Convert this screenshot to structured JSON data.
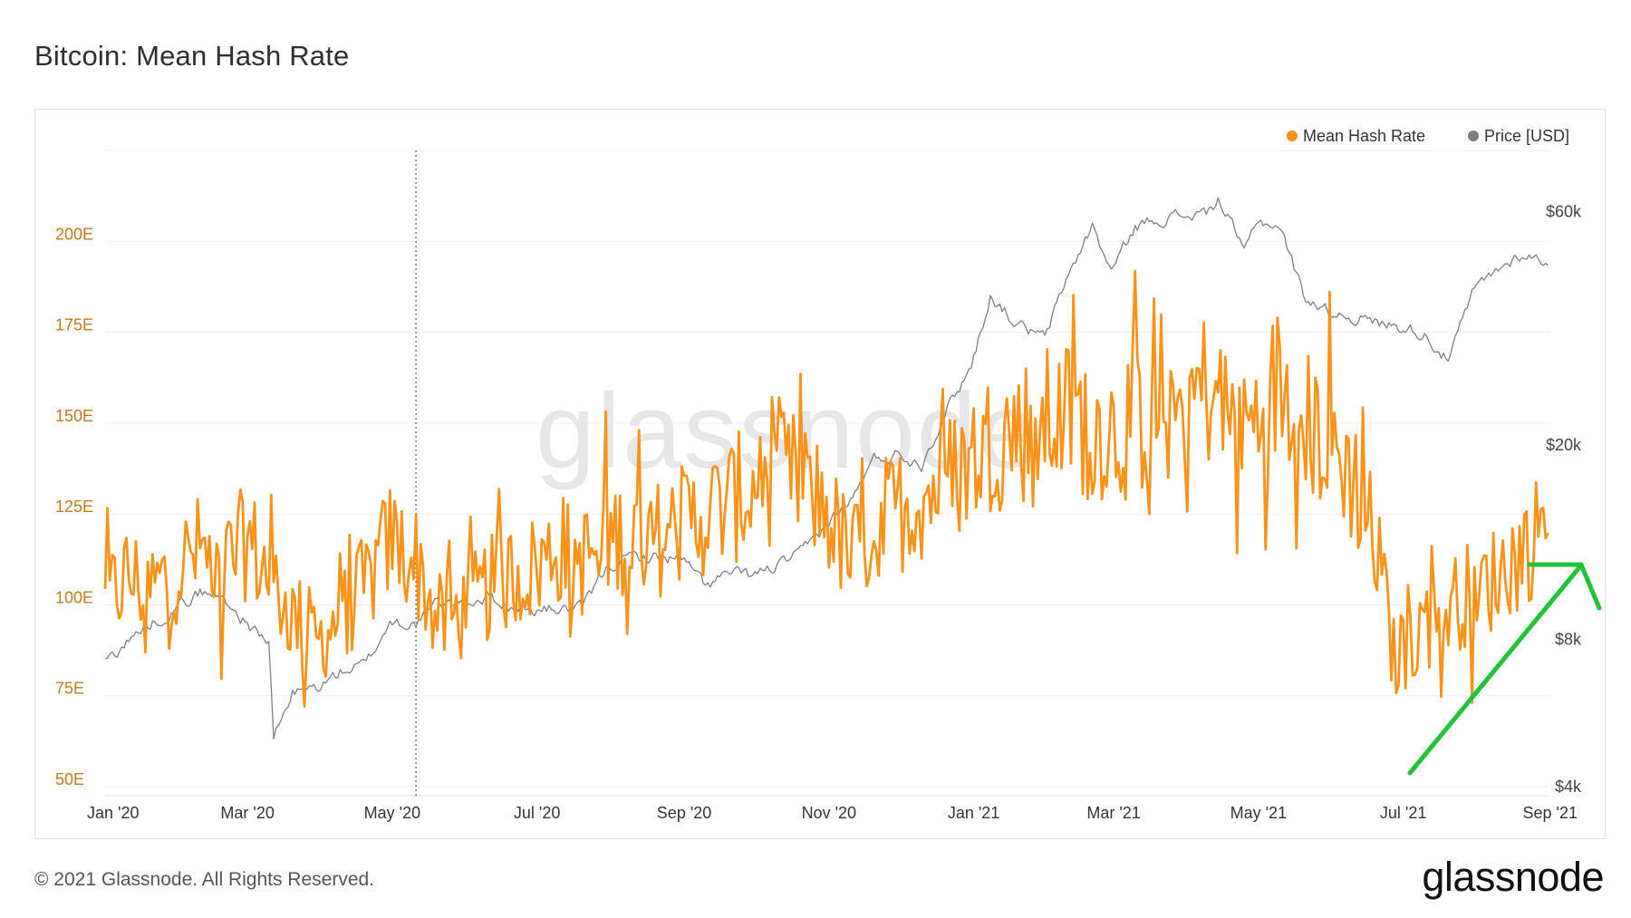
{
  "title": "Bitcoin: Mean Hash Rate",
  "footer": "© 2021 Glassnode. All Rights Reserved.",
  "logo": "glassnode",
  "watermark": "glassnode",
  "colors": {
    "hash": "#f7931a",
    "price": "#7f7f7f",
    "arrow": "#22c33a",
    "grid": "#efefef"
  },
  "chart_data": {
    "type": "line",
    "title": "Bitcoin: Mean Hash Rate",
    "legend": [
      "Mean Hash Rate",
      "Price [USD]"
    ],
    "legend_position": "top-right",
    "grid": true,
    "y_left": {
      "ticks": [
        "50E",
        "75E",
        "100E",
        "125E",
        "150E",
        "175E",
        "200E"
      ],
      "values": [
        50,
        75,
        100,
        125,
        150,
        175,
        200
      ],
      "range": [
        50,
        225
      ]
    },
    "y_right": {
      "scale": "log",
      "ticks": [
        "$4k",
        "$8k",
        "$20k",
        "$60k"
      ],
      "values": [
        4000,
        8000,
        20000,
        60000
      ],
      "range": [
        4000,
        80000
      ]
    },
    "x_ticks": [
      "Jan '20",
      "Mar '20",
      "May '20",
      "Jul '20",
      "Sep '20",
      "Nov '20",
      "Jan '21",
      "Mar '21",
      "May '21",
      "Jul '21",
      "Sep '21"
    ],
    "x_tick_dates": [
      "2020-01-01",
      "2020-03-01",
      "2020-05-01",
      "2020-07-01",
      "2020-09-01",
      "2020-11-01",
      "2021-01-01",
      "2021-03-01",
      "2021-05-01",
      "2021-07-01",
      "2021-09-01"
    ],
    "x_range": [
      "2020-01-01",
      "2021-09-01"
    ],
    "marker_date": "2020-05-11",
    "series": [
      {
        "name": "Mean Hash Rate",
        "axis": "left",
        "points": [
          [
            "2020-01-01",
            100
          ],
          [
            "2020-01-10",
            108
          ],
          [
            "2020-01-20",
            104
          ],
          [
            "2020-01-31",
            110
          ],
          [
            "2020-02-10",
            115
          ],
          [
            "2020-02-20",
            110
          ],
          [
            "2020-03-01",
            118
          ],
          [
            "2020-03-10",
            108
          ],
          [
            "2020-03-20",
            97
          ],
          [
            "2020-03-31",
            90
          ],
          [
            "2020-04-10",
            98
          ],
          [
            "2020-04-20",
            105
          ],
          [
            "2020-04-30",
            118
          ],
          [
            "2020-05-11",
            112
          ],
          [
            "2020-05-20",
            95
          ],
          [
            "2020-05-31",
            98
          ],
          [
            "2020-06-10",
            104
          ],
          [
            "2020-06-20",
            108
          ],
          [
            "2020-06-30",
            110
          ],
          [
            "2020-07-10",
            116
          ],
          [
            "2020-07-20",
            112
          ],
          [
            "2020-07-31",
            118
          ],
          [
            "2020-08-10",
            120
          ],
          [
            "2020-08-20",
            118
          ],
          [
            "2020-08-31",
            122
          ],
          [
            "2020-09-10",
            125
          ],
          [
            "2020-09-20",
            128
          ],
          [
            "2020-09-30",
            132
          ],
          [
            "2020-10-10",
            136
          ],
          [
            "2020-10-20",
            134
          ],
          [
            "2020-10-31",
            126
          ],
          [
            "2020-11-10",
            112
          ],
          [
            "2020-11-20",
            122
          ],
          [
            "2020-11-30",
            126
          ],
          [
            "2020-12-10",
            130
          ],
          [
            "2020-12-20",
            134
          ],
          [
            "2020-12-31",
            140
          ],
          [
            "2021-01-10",
            146
          ],
          [
            "2021-01-20",
            148
          ],
          [
            "2021-01-31",
            150
          ],
          [
            "2021-02-10",
            152
          ],
          [
            "2021-02-20",
            150
          ],
          [
            "2021-02-28",
            148
          ],
          [
            "2021-03-10",
            150
          ],
          [
            "2021-03-20",
            154
          ],
          [
            "2021-03-31",
            156
          ],
          [
            "2021-04-10",
            160
          ],
          [
            "2021-04-20",
            150
          ],
          [
            "2021-04-30",
            150
          ],
          [
            "2021-05-10",
            162
          ],
          [
            "2021-05-20",
            150
          ],
          [
            "2021-05-31",
            145
          ],
          [
            "2021-06-10",
            135
          ],
          [
            "2021-06-20",
            115
          ],
          [
            "2021-06-27",
            85
          ],
          [
            "2021-07-01",
            88
          ],
          [
            "2021-07-10",
            95
          ],
          [
            "2021-07-20",
            100
          ],
          [
            "2021-07-31",
            104
          ],
          [
            "2021-08-10",
            108
          ],
          [
            "2021-08-20",
            115
          ],
          [
            "2021-08-31",
            122
          ]
        ]
      },
      {
        "name": "Price [USD]",
        "axis": "right",
        "points": [
          [
            "2020-01-01",
            7200
          ],
          [
            "2020-01-10",
            7900
          ],
          [
            "2020-01-20",
            8600
          ],
          [
            "2020-01-31",
            9300
          ],
          [
            "2020-02-10",
            10000
          ],
          [
            "2020-02-20",
            9700
          ],
          [
            "2020-03-01",
            8600
          ],
          [
            "2020-03-10",
            7900
          ],
          [
            "2020-03-12",
            5000
          ],
          [
            "2020-03-20",
            6200
          ],
          [
            "2020-03-31",
            6400
          ],
          [
            "2020-04-10",
            6900
          ],
          [
            "2020-04-20",
            7100
          ],
          [
            "2020-04-30",
            8700
          ],
          [
            "2020-05-11",
            8600
          ],
          [
            "2020-05-20",
            9500
          ],
          [
            "2020-05-31",
            9500
          ],
          [
            "2020-06-10",
            9800
          ],
          [
            "2020-06-20",
            9300
          ],
          [
            "2020-06-30",
            9150
          ],
          [
            "2020-07-10",
            9250
          ],
          [
            "2020-07-20",
            9200
          ],
          [
            "2020-07-31",
            11300
          ],
          [
            "2020-08-10",
            11800
          ],
          [
            "2020-08-20",
            11800
          ],
          [
            "2020-08-31",
            11700
          ],
          [
            "2020-09-10",
            10300
          ],
          [
            "2020-09-20",
            10900
          ],
          [
            "2020-09-30",
            10800
          ],
          [
            "2020-10-10",
            11300
          ],
          [
            "2020-10-20",
            11900
          ],
          [
            "2020-10-31",
            13800
          ],
          [
            "2020-11-10",
            15300
          ],
          [
            "2020-11-20",
            18600
          ],
          [
            "2020-11-30",
            19200
          ],
          [
            "2020-12-10",
            18300
          ],
          [
            "2020-12-20",
            23400
          ],
          [
            "2020-12-31",
            29000
          ],
          [
            "2021-01-08",
            40500
          ],
          [
            "2021-01-20",
            35000
          ],
          [
            "2021-01-31",
            33000
          ],
          [
            "2021-02-10",
            44800
          ],
          [
            "2021-02-20",
            56000
          ],
          [
            "2021-02-28",
            45200
          ],
          [
            "2021-03-10",
            55800
          ],
          [
            "2021-03-20",
            58300
          ],
          [
            "2021-03-31",
            58800
          ],
          [
            "2021-04-10",
            59800
          ],
          [
            "2021-04-14",
            63500
          ],
          [
            "2021-04-20",
            56000
          ],
          [
            "2021-04-25",
            49000
          ],
          [
            "2021-04-30",
            57700
          ],
          [
            "2021-05-10",
            56000
          ],
          [
            "2021-05-20",
            40500
          ],
          [
            "2021-05-31",
            37300
          ],
          [
            "2021-06-10",
            36700
          ],
          [
            "2021-06-20",
            35500
          ],
          [
            "2021-06-30",
            35000
          ],
          [
            "2021-07-10",
            33800
          ],
          [
            "2021-07-20",
            29800
          ],
          [
            "2021-07-31",
            41500
          ],
          [
            "2021-08-10",
            45600
          ],
          [
            "2021-08-20",
            49300
          ],
          [
            "2021-08-31",
            47100
          ]
        ]
      }
    ]
  }
}
